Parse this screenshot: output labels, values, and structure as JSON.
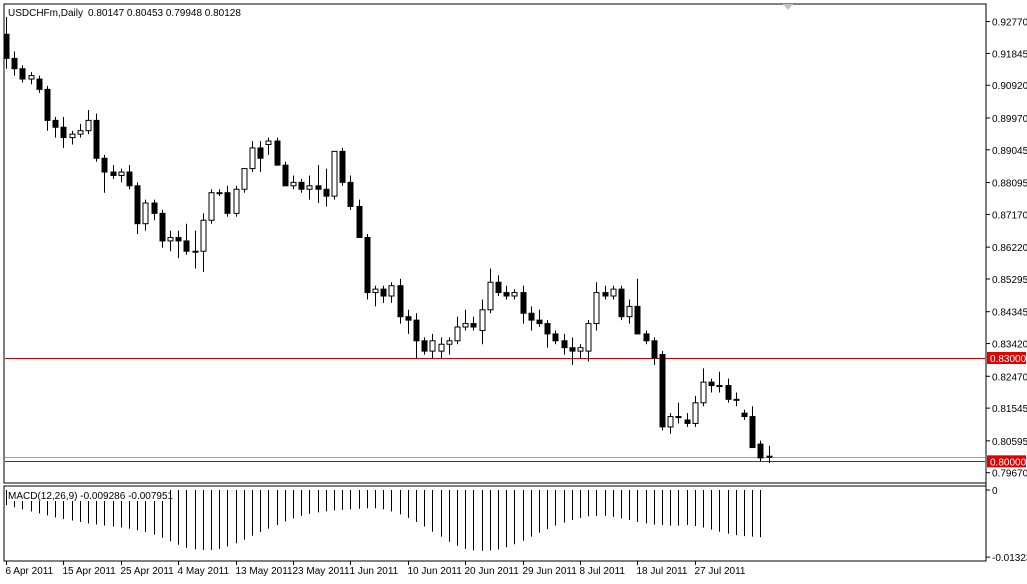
{
  "header": {
    "symbol": "USDCHFm,Daily",
    "ohlc": "0.80147 0.80453 0.79948 0.80128"
  },
  "macd": {
    "label": "MACD(12,26,9) -0.009286 -0.007951"
  },
  "colors": {
    "background": "#ffffff",
    "candle_bull_fill": "#ffffff",
    "candle_bear_fill": "#000000",
    "candle_outline": "#000000",
    "hline": "#cc0000",
    "price_tag_bg": "#e00000",
    "price_tag_text": "#ffffff",
    "current_price_line": "#a0a0a0"
  },
  "chart_data": [
    {
      "type": "candlestick",
      "symbol": "USDCHFm",
      "timeframe": "Daily",
      "ylim": [
        0.794,
        0.9325
      ],
      "yticks": [
        "0.92770",
        "0.91845",
        "0.90920",
        "0.89970",
        "0.89045",
        "0.88095",
        "0.87170",
        "0.86220",
        "0.85295",
        "0.84345",
        "0.83420",
        "0.82470",
        "0.81545",
        "0.80595",
        "0.79670"
      ],
      "xtick_labels": [
        "6 Apr 2011",
        "15 Apr 2011",
        "25 Apr 2011",
        "4 May 2011",
        "13 May 2011",
        "23 May 2011",
        "1 Jun 2011",
        "10 Jun 2011",
        "20 Jun 2011",
        "29 Jun 2011",
        "8 Jul 2011",
        "18 Jul 2011",
        "27 Jul 2011"
      ],
      "xtick_bar_index": [
        0,
        7,
        14,
        21,
        28,
        35,
        42,
        49,
        56,
        63,
        70,
        77,
        84
      ],
      "horizontal_lines": [
        0.83,
        0.8
      ],
      "price_tags": [
        "0.83000",
        "0.80000"
      ],
      "current_price": 0.80128,
      "ohlc": [
        [
          0.924,
          0.929,
          0.914,
          0.917
        ],
        [
          0.917,
          0.919,
          0.912,
          0.914
        ],
        [
          0.914,
          0.915,
          0.91,
          0.911
        ],
        [
          0.911,
          0.913,
          0.9095,
          0.912
        ],
        [
          0.911,
          0.912,
          0.907,
          0.908
        ],
        [
          0.908,
          0.909,
          0.896,
          0.899
        ],
        [
          0.899,
          0.9,
          0.894,
          0.897
        ],
        [
          0.897,
          0.9,
          0.891,
          0.894
        ],
        [
          0.894,
          0.896,
          0.892,
          0.895
        ],
        [
          0.895,
          0.898,
          0.894,
          0.896
        ],
        [
          0.896,
          0.902,
          0.895,
          0.899
        ],
        [
          0.899,
          0.901,
          0.887,
          0.888
        ],
        [
          0.888,
          0.889,
          0.878,
          0.884
        ],
        [
          0.884,
          0.886,
          0.882,
          0.883
        ],
        [
          0.883,
          0.885,
          0.881,
          0.884
        ],
        [
          0.884,
          0.886,
          0.879,
          0.88
        ],
        [
          0.88,
          0.881,
          0.866,
          0.869
        ],
        [
          0.869,
          0.876,
          0.867,
          0.875
        ],
        [
          0.875,
          0.876,
          0.87,
          0.872
        ],
        [
          0.872,
          0.873,
          0.862,
          0.864
        ],
        [
          0.864,
          0.867,
          0.861,
          0.865
        ],
        [
          0.865,
          0.867,
          0.859,
          0.864
        ],
        [
          0.864,
          0.869,
          0.86,
          0.861
        ],
        [
          0.861,
          0.867,
          0.856,
          0.861
        ],
        [
          0.861,
          0.872,
          0.855,
          0.87
        ],
        [
          0.87,
          0.879,
          0.869,
          0.878
        ],
        [
          0.878,
          0.879,
          0.877,
          0.878
        ],
        [
          0.878,
          0.88,
          0.871,
          0.872
        ],
        [
          0.872,
          0.88,
          0.871,
          0.879
        ],
        [
          0.879,
          0.885,
          0.878,
          0.885
        ],
        [
          0.885,
          0.893,
          0.884,
          0.891
        ],
        [
          0.891,
          0.893,
          0.884,
          0.888
        ],
        [
          0.892,
          0.894,
          0.889,
          0.893
        ],
        [
          0.893,
          0.894,
          0.886,
          0.886
        ],
        [
          0.886,
          0.887,
          0.88,
          0.88
        ],
        [
          0.88,
          0.883,
          0.879,
          0.881
        ],
        [
          0.881,
          0.882,
          0.878,
          0.879
        ],
        [
          0.879,
          0.883,
          0.876,
          0.88
        ],
        [
          0.88,
          0.886,
          0.875,
          0.879
        ],
        [
          0.879,
          0.885,
          0.874,
          0.877
        ],
        [
          0.877,
          0.89,
          0.876,
          0.89
        ],
        [
          0.89,
          0.891,
          0.88,
          0.881
        ],
        [
          0.881,
          0.883,
          0.873,
          0.874
        ],
        [
          0.874,
          0.876,
          0.865,
          0.865
        ],
        [
          0.865,
          0.866,
          0.847,
          0.849
        ],
        [
          0.849,
          0.851,
          0.845,
          0.85
        ],
        [
          0.85,
          0.851,
          0.846,
          0.848
        ],
        [
          0.848,
          0.852,
          0.846,
          0.851
        ],
        [
          0.851,
          0.853,
          0.84,
          0.842
        ],
        [
          0.842,
          0.844,
          0.837,
          0.841
        ],
        [
          0.841,
          0.843,
          0.83,
          0.835
        ],
        [
          0.835,
          0.836,
          0.831,
          0.832
        ],
        [
          0.832,
          0.837,
          0.83,
          0.835
        ],
        [
          0.832,
          0.836,
          0.83,
          0.834
        ],
        [
          0.834,
          0.836,
          0.831,
          0.835
        ],
        [
          0.835,
          0.842,
          0.834,
          0.839
        ],
        [
          0.839,
          0.844,
          0.838,
          0.84
        ],
        [
          0.84,
          0.842,
          0.838,
          0.839
        ],
        [
          0.838,
          0.847,
          0.834,
          0.844
        ],
        [
          0.844,
          0.856,
          0.843,
          0.852
        ],
        [
          0.852,
          0.854,
          0.848,
          0.849
        ],
        [
          0.849,
          0.851,
          0.847,
          0.848
        ],
        [
          0.848,
          0.85,
          0.847,
          0.849
        ],
        [
          0.849,
          0.851,
          0.84,
          0.843
        ],
        [
          0.843,
          0.845,
          0.838,
          0.841
        ],
        [
          0.841,
          0.844,
          0.839,
          0.84
        ],
        [
          0.84,
          0.841,
          0.833,
          0.837
        ],
        [
          0.837,
          0.838,
          0.834,
          0.835
        ],
        [
          0.835,
          0.837,
          0.831,
          0.833
        ],
        [
          0.833,
          0.836,
          0.828,
          0.832
        ],
        [
          0.832,
          0.834,
          0.83,
          0.833
        ],
        [
          0.832,
          0.841,
          0.829,
          0.84
        ],
        [
          0.84,
          0.852,
          0.838,
          0.849
        ],
        [
          0.849,
          0.851,
          0.847,
          0.848
        ],
        [
          0.848,
          0.851,
          0.847,
          0.85
        ],
        [
          0.85,
          0.851,
          0.841,
          0.842
        ],
        [
          0.842,
          0.847,
          0.84,
          0.845
        ],
        [
          0.845,
          0.853,
          0.837,
          0.837
        ],
        [
          0.837,
          0.838,
          0.834,
          0.835
        ],
        [
          0.835,
          0.836,
          0.828,
          0.83
        ],
        [
          0.831,
          0.832,
          0.809,
          0.81
        ],
        [
          0.81,
          0.814,
          0.808,
          0.813
        ],
        [
          0.813,
          0.817,
          0.811,
          0.813
        ],
        [
          0.812,
          0.814,
          0.81,
          0.811
        ],
        [
          0.811,
          0.819,
          0.81,
          0.817
        ],
        [
          0.817,
          0.827,
          0.816,
          0.823
        ],
        [
          0.823,
          0.824,
          0.82,
          0.822
        ],
        [
          0.822,
          0.826,
          0.82,
          0.822
        ],
        [
          0.822,
          0.824,
          0.817,
          0.818
        ],
        [
          0.818,
          0.82,
          0.816,
          0.818
        ],
        [
          0.814,
          0.815,
          0.812,
          0.813
        ],
        [
          0.813,
          0.816,
          0.804,
          0.804
        ],
        [
          0.805,
          0.806,
          0.8,
          0.801
        ],
        [
          0.8015,
          0.8045,
          0.7995,
          0.8013
        ]
      ]
    },
    {
      "type": "bar",
      "name": "MACD(12,26,9)",
      "ylim": [
        -0.0138,
        0.0006
      ],
      "yticks": [
        "0",
        "-0.01323"
      ],
      "values": [
        -0.003,
        -0.0034,
        -0.0038,
        -0.0042,
        -0.0046,
        -0.005,
        -0.0054,
        -0.0057,
        -0.006,
        -0.0063,
        -0.0066,
        -0.0068,
        -0.007,
        -0.0072,
        -0.0074,
        -0.0076,
        -0.0079,
        -0.0083,
        -0.0088,
        -0.0094,
        -0.0101,
        -0.0108,
        -0.0114,
        -0.0117,
        -0.0118,
        -0.0118,
        -0.0116,
        -0.0111,
        -0.0105,
        -0.0098,
        -0.009,
        -0.0083,
        -0.0076,
        -0.0069,
        -0.0062,
        -0.0056,
        -0.0051,
        -0.0047,
        -0.0044,
        -0.0042,
        -0.004,
        -0.0039,
        -0.0038,
        -0.0037,
        -0.0036,
        -0.0036,
        -0.0038,
        -0.0042,
        -0.0048,
        -0.0055,
        -0.0063,
        -0.0072,
        -0.0082,
        -0.0092,
        -0.0102,
        -0.011,
        -0.0116,
        -0.0119,
        -0.012,
        -0.0119,
        -0.0117,
        -0.0113,
        -0.0107,
        -0.01,
        -0.0092,
        -0.0084,
        -0.0077,
        -0.007,
        -0.0064,
        -0.0059,
        -0.0055,
        -0.0052,
        -0.0051,
        -0.0051,
        -0.0053,
        -0.0056,
        -0.0059,
        -0.0063,
        -0.0066,
        -0.0068,
        -0.0069,
        -0.007,
        -0.007,
        -0.0069,
        -0.0071,
        -0.0074,
        -0.0078,
        -0.0082,
        -0.0086,
        -0.0089,
        -0.0091,
        -0.0092,
        -0.0093
      ]
    }
  ]
}
